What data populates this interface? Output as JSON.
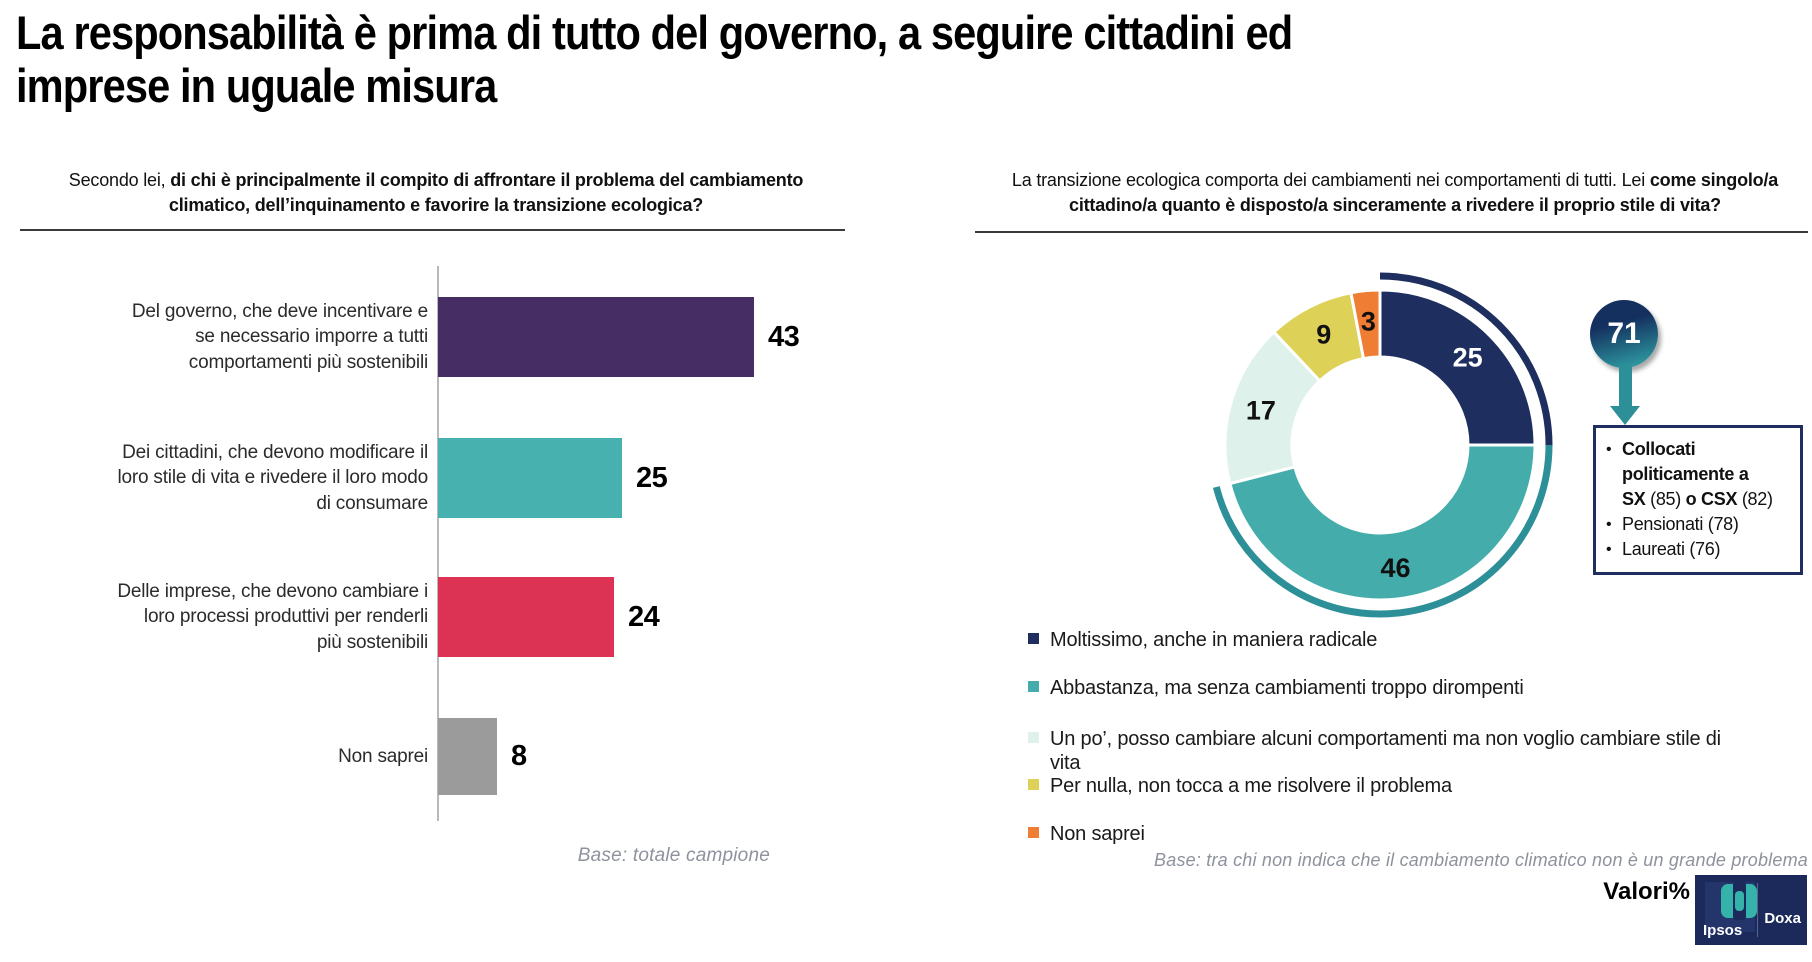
{
  "slide": {
    "title_lines": [
      "La responsabilità è prima di tutto del governo, a seguire cittadini ed",
      "imprese in uguale misura"
    ],
    "valori_label": "Valori%"
  },
  "left_panel": {
    "question_prefix": "Secondo lei, ",
    "question_bold": "di chi è principalmente il compito di affrontare il problema del cambiamento climatico, dell’inquinamento e favorire la transizione ecologica?",
    "base_note": "Base: totale campione"
  },
  "right_panel": {
    "question_prefix": "La transizione ecologica comporta dei cambiamenti nei comportamenti di tutti. Lei ",
    "question_bold": "come singolo/a cittadino/a quanto è disposto/a sinceramente a rivedere il proprio stile di vita?",
    "base_note": "Base: tra chi non indica che il cambiamento climatico non è un grande problema"
  },
  "chart_data": [
    {
      "type": "bar",
      "orientation": "horizontal",
      "title": "Secondo lei, di chi è principalmente il compito di affrontare il problema del cambiamento climatico, dell’inquinamento e favorire la transizione ecologica?",
      "categories": [
        "Del governo, che deve incentivare e se necessario imporre a tutti comportamenti più sostenibili",
        "Dei cittadini, che devono modificare il loro stile di vita e rivedere il loro modo di consumare",
        "Delle imprese, che devono cambiare i loro processi produttivi per renderli più sostenibili",
        "Non saprei"
      ],
      "categories_lines": [
        [
          "Del governo, che deve incentivare e",
          "se necessario imporre a tutti",
          "comportamenti più sostenibili"
        ],
        [
          "Dei cittadini, che devono modificare il",
          "loro stile di vita e rivedere il loro modo",
          "di consumare"
        ],
        [
          "Delle imprese, che devono cambiare i",
          "loro processi produttivi per renderli",
          "più sostenibili"
        ],
        [
          "Non saprei"
        ]
      ],
      "values": [
        43,
        25,
        24,
        8
      ],
      "colors": [
        "#462d63",
        "#47b1af",
        "#dc3355",
        "#9b9b9b"
      ],
      "xlim": [
        0,
        50
      ],
      "grid": false,
      "value_labels": true
    },
    {
      "type": "pie",
      "subtype": "donut",
      "title": "La transizione ecologica comporta dei cambiamenti nei comportamenti di tutti. Lei come singolo/a cittadino/a quanto è disposto/a sinceramente a rivedere il proprio stile di vita?",
      "labels": [
        "Moltissimo, anche in maniera radicale",
        "Abbastanza, ma senza cambiamenti troppo dirompenti",
        "Un po’, posso cambiare alcuni comportamenti ma non voglio cambiare stile di vita",
        "Per nulla, non tocca a me risolvere il problema",
        "Non saprei"
      ],
      "labels_lines": [
        [
          "Moltissimo, anche in maniera radicale"
        ],
        [
          "Abbastanza, ma senza cambiamenti troppo dirompenti"
        ],
        [
          "Un po’, posso cambiare alcuni comportamenti ma non voglio cambiare stile di",
          "vita"
        ],
        [
          "Per nulla, non tocca a me risolvere il problema"
        ],
        [
          "Non saprei"
        ]
      ],
      "values": [
        25,
        46,
        17,
        9,
        3
      ],
      "colors": [
        "#1d2e5f",
        "#44adab",
        "#def2eb",
        "#ded158",
        "#ef7d33"
      ],
      "label_colors": [
        "#ffffff",
        "#111111",
        "#111111",
        "#111111",
        "#111111"
      ],
      "legend_position": "bottom-left",
      "highlight_arc": {
        "total": 71,
        "covers_values": [
          25,
          46
        ],
        "arc_colors": [
          "#1d2e5f",
          "#2d8f98"
        ]
      }
    }
  ],
  "callout": {
    "bubble_value": "71",
    "items": [
      {
        "lines": [
          [
            {
              "t": "Collocati",
              "b": true
            }
          ],
          [
            {
              "t": "politicamente a",
              "b": true
            }
          ],
          [
            {
              "t": "SX",
              "b": true
            },
            {
              "t": " (85) ",
              "b": false
            },
            {
              "t": "o CSX",
              "b": true
            },
            {
              "t": " (82)",
              "b": false
            }
          ]
        ]
      },
      {
        "lines": [
          [
            {
              "t": "Pensionati (78)",
              "b": false
            }
          ]
        ]
      },
      {
        "lines": [
          [
            {
              "t": "Laureati (76)",
              "b": false
            }
          ]
        ]
      }
    ]
  },
  "logo": {
    "ipsos": "Ipsos",
    "doxa": "Doxa"
  }
}
